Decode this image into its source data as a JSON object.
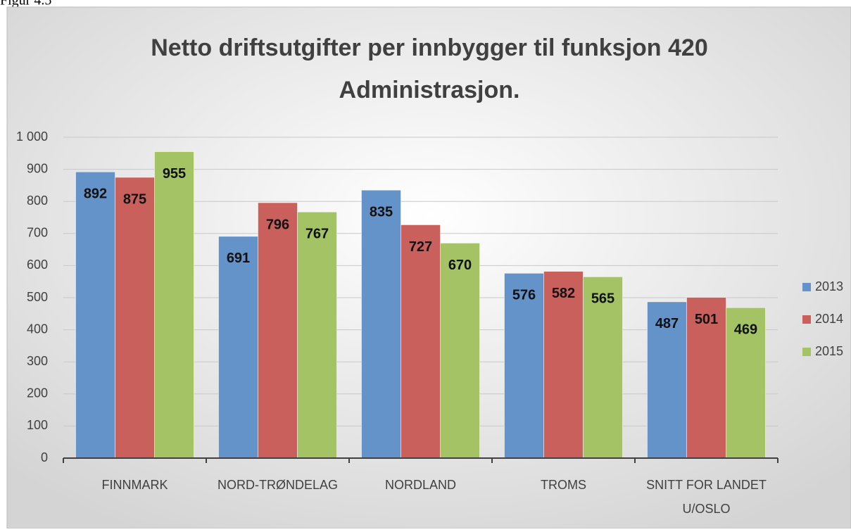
{
  "caption": "Figur 4.5",
  "chart_data": {
    "type": "bar",
    "title": [
      "Netto driftsutgifter per innbygger til funksjon 420",
      "Administrasjon."
    ],
    "categories": [
      "FINNMARK",
      "NORD-TRØNDELAG",
      "NORDLAND",
      "TROMS",
      "SNITT  FOR LANDET\nU/OSLO"
    ],
    "series": [
      {
        "name": "2013",
        "color": "#6393c9",
        "values": [
          892,
          691,
          835,
          576,
          487
        ]
      },
      {
        "name": "2014",
        "color": "#c9605c",
        "values": [
          875,
          796,
          727,
          582,
          501
        ]
      },
      {
        "name": "2015",
        "color": "#a3c365",
        "values": [
          955,
          767,
          670,
          565,
          469
        ]
      }
    ],
    "ylim": [
      0,
      1000
    ],
    "yticks": [
      0,
      100,
      200,
      300,
      400,
      500,
      600,
      700,
      800,
      900,
      {
        "value": 1000,
        "label": "1 000"
      }
    ],
    "grid": true,
    "legend": "right"
  }
}
